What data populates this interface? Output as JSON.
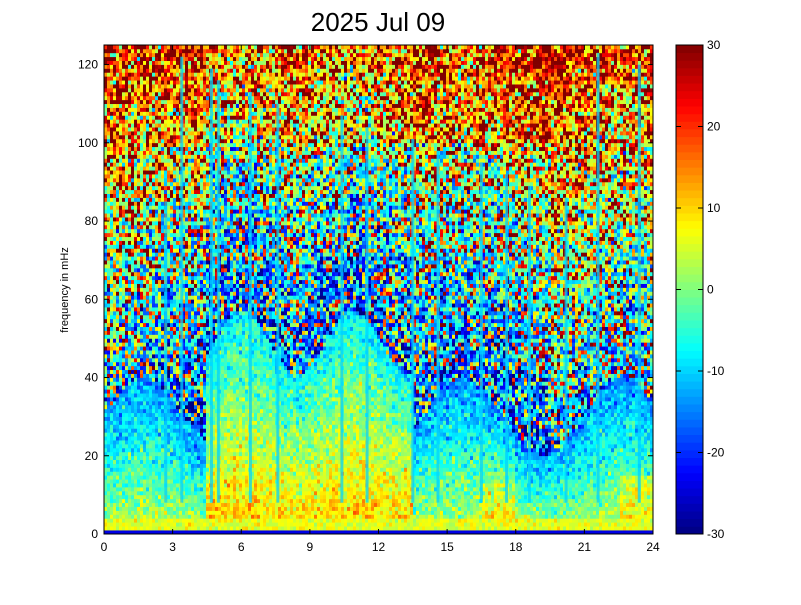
{
  "chart_data": {
    "type": "heatmap",
    "title": "2025 Jul 09",
    "xlabel": "",
    "ylabel": "frequency in mHz",
    "xlim": [
      0,
      24
    ],
    "ylim": [
      0,
      125
    ],
    "x_ticks": [
      {
        "value": 0,
        "label": "0"
      },
      {
        "value": 3,
        "label": "3"
      },
      {
        "value": 6,
        "label": "6"
      },
      {
        "value": 9,
        "label": "9"
      },
      {
        "value": 12,
        "label": "12"
      },
      {
        "value": 15,
        "label": "15"
      },
      {
        "value": 18,
        "label": "18"
      },
      {
        "value": 21,
        "label": "21"
      },
      {
        "value": 24,
        "label": "24"
      }
    ],
    "y_ticks": [
      {
        "value": 0,
        "label": "0"
      },
      {
        "value": 20,
        "label": "20"
      },
      {
        "value": 40,
        "label": "40"
      },
      {
        "value": 60,
        "label": "60"
      },
      {
        "value": 80,
        "label": "80"
      },
      {
        "value": 100,
        "label": "100"
      },
      {
        "value": 120,
        "label": "120"
      }
    ],
    "colorbar": {
      "colormap": "jet",
      "range": [
        -30,
        30
      ],
      "ticks": [
        {
          "value": 30,
          "label": "30"
        },
        {
          "value": 20,
          "label": "20"
        },
        {
          "value": 10,
          "label": "10"
        },
        {
          "value": 0,
          "label": "0"
        },
        {
          "value": -10,
          "label": "-10"
        },
        {
          "value": -20,
          "label": "-20"
        },
        {
          "value": -30,
          "label": "-30"
        }
      ]
    },
    "grid": false,
    "vertical_streaks_hours": [
      2.7,
      3.4,
      4.7,
      5.0,
      6.4,
      7.6,
      10.4,
      11.5,
      13.5,
      14.6,
      16.5,
      17.6,
      18.6,
      20.2,
      21.6,
      23.4
    ],
    "activity_band": {
      "start_hour": 4.5,
      "end_hour": 13.5,
      "max_freq_mhz": 55
    }
  }
}
